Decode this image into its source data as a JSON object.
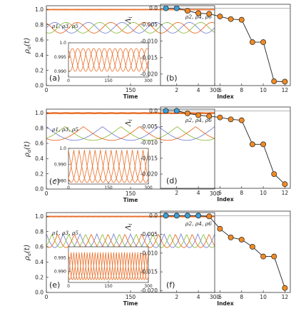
{
  "colors": {
    "orange": "#e8702a",
    "blue_series": "#7b86d6",
    "green_series": "#93bf45",
    "marker_blue": "#3aa0d8",
    "marker_orange": "#f08a24",
    "axis": "#333333"
  },
  "chart_data": [
    {
      "type": "line",
      "panel_label": "(a)",
      "xlabel": "Time",
      "ylabel": "ρ_a(t)",
      "xlim": [
        0,
        300
      ],
      "ylim": [
        0,
        1.05
      ],
      "xticks": [
        "0",
        "150",
        "300"
      ],
      "yticks": [
        "0.0",
        "0.2",
        "0.4",
        "0.6",
        "0.8",
        "1.0"
      ],
      "annotations": [
        "ρ2, ρ4, ρ6",
        "ρ1, ρ3, ρ5"
      ],
      "series": [
        {
          "name": "ρ2, ρ4, ρ6",
          "color": "#e8702a",
          "center": 0.999,
          "amplitude": 0.002,
          "period": 60,
          "phase_offsets": [
            0,
            20,
            40
          ]
        },
        {
          "name": "ρ1, ρ3, ρ5",
          "colors": [
            "#7b86d6",
            "#93bf45",
            "#e8702a"
          ],
          "center": 0.76,
          "amplitude": 0.07,
          "period": 60,
          "phase_offsets": [
            0,
            20,
            40
          ]
        }
      ],
      "inset": {
        "xlim": [
          0,
          300
        ],
        "ylim": [
          0.988,
          1.0
        ],
        "xticks": [
          "0",
          "150",
          "300"
        ],
        "yticks": [
          "0.990",
          "0.995",
          "1.0"
        ],
        "series": {
          "center": 0.994,
          "amplitude": 0.004,
          "period": 60,
          "phase_offsets": [
            0,
            20,
            40
          ],
          "shape": "sine"
        }
      }
    },
    {
      "type": "scatter",
      "panel_label": "(b)",
      "xlabel": "Index",
      "ylabel": "Λ_i",
      "xlim": [
        0.5,
        12.5
      ],
      "ylim": [
        -0.0235,
        0.0012
      ],
      "xticks": [
        "2",
        "4",
        "6",
        "8",
        "10",
        "12"
      ],
      "yticks": [
        "0.0",
        "-0.005",
        "-0.010",
        "-0.015",
        "-0.020"
      ],
      "x": [
        1,
        2,
        3,
        4,
        5,
        6,
        7,
        8,
        9,
        10,
        11,
        12
      ],
      "y": [
        0.0,
        0.0,
        -0.0008,
        -0.0015,
        -0.0017,
        -0.0025,
        -0.0033,
        -0.0035,
        -0.0103,
        -0.0103,
        -0.0222,
        -0.0223
      ],
      "marker_colors": [
        "blue",
        "blue",
        "orange",
        "orange",
        "orange",
        "orange",
        "orange",
        "orange",
        "orange",
        "orange",
        "orange",
        "orange"
      ]
    },
    {
      "type": "line",
      "panel_label": "(c)",
      "xlabel": "Time",
      "ylabel": "ρ_a(t)",
      "xlim": [
        0,
        300
      ],
      "ylim": [
        0,
        1.05
      ],
      "xticks": [
        "0",
        "150",
        "300"
      ],
      "yticks": [
        "0.0",
        "0.2",
        "0.4",
        "0.6",
        "0.8",
        "1.0"
      ],
      "annotations": [
        "ρ2, ρ4, ρ6",
        "ρ1, ρ3, ρ5"
      ],
      "series": [
        {
          "name": "ρ2, ρ4, ρ6",
          "color": "#e8702a",
          "center": 0.997,
          "amplitude": 0.006,
          "period": 60,
          "phase_offsets": [
            0,
            20,
            40
          ]
        },
        {
          "name": "ρ1, ρ3, ρ5",
          "colors": [
            "#7b86d6",
            "#93bf45",
            "#e8702a"
          ],
          "center": 0.73,
          "amplitude": 0.09,
          "period": 100,
          "phase_offsets": [
            0,
            33,
            66
          ]
        }
      ],
      "inset": {
        "xlim": [
          0,
          300
        ],
        "ylim": [
          0.978,
          1.0
        ],
        "xticks": [
          "0",
          "150",
          "300"
        ],
        "yticks": [
          "0.980",
          "0.990",
          "1.0"
        ],
        "series": {
          "center": 0.989,
          "amplitude": 0.01,
          "period": 60,
          "phase_offsets": [
            0,
            20,
            40
          ],
          "shape": "cusp"
        }
      }
    },
    {
      "type": "scatter",
      "panel_label": "(d)",
      "xlabel": "Index",
      "ylabel": "Λ_i",
      "xlim": [
        0.5,
        12.5
      ],
      "ylim": [
        -0.0245,
        0.0012
      ],
      "xticks": [
        "2",
        "4",
        "6",
        "8",
        "10",
        "12"
      ],
      "yticks": [
        "0.0",
        "-0.005",
        "-0.010",
        "-0.015",
        "-0.020"
      ],
      "x": [
        1,
        2,
        3,
        4,
        5,
        6,
        7,
        8,
        9,
        10,
        11,
        12
      ],
      "y": [
        0.0,
        0.0,
        -0.0008,
        -0.0014,
        -0.0017,
        -0.0021,
        -0.0027,
        -0.003,
        -0.0106,
        -0.0106,
        -0.02,
        -0.0232
      ],
      "marker_colors": [
        "blue",
        "blue",
        "orange",
        "orange",
        "orange",
        "orange",
        "orange",
        "orange",
        "orange",
        "orange",
        "orange",
        "orange"
      ]
    },
    {
      "type": "line",
      "panel_label": "(e)",
      "xlabel": "Time",
      "ylabel": "ρ_a(t)",
      "xlim": [
        0,
        300
      ],
      "ylim": [
        0,
        1.05
      ],
      "xticks": [
        "0",
        "150",
        "300"
      ],
      "yticks": [
        "0.0",
        "0.2",
        "0.4",
        "0.6",
        "0.8",
        "1.0"
      ],
      "annotations": [
        "ρ2, ρ4, ρ6",
        "ρ1, ρ3, ρ5"
      ],
      "series": [
        {
          "name": "ρ2, ρ4, ρ6",
          "color": "#e8702a",
          "center": 0.998,
          "amplitude": 0.003,
          "period": 30,
          "phase_offsets": [
            0,
            10,
            20
          ]
        },
        {
          "name": "ρ1, ρ3, ρ5",
          "colors": [
            "#7b86d6",
            "#93bf45",
            "#e8702a"
          ],
          "center": 0.68,
          "amplitude": 0.09,
          "period": 30,
          "phase_offsets": [
            0,
            10,
            20
          ]
        }
      ],
      "inset": {
        "xlim": [
          0,
          300
        ],
        "ylim": [
          0.986,
          0.999
        ],
        "xticks": [
          "0",
          "150",
          "300"
        ],
        "yticks": [
          "0.990",
          "0.995"
        ],
        "series": {
          "center": 0.992,
          "amplitude": 0.005,
          "period": 30,
          "phase_offsets": [
            0,
            10,
            20
          ],
          "shape": "cusp"
        }
      }
    },
    {
      "type": "scatter",
      "panel_label": "(f)",
      "xlabel": "Index",
      "ylabel": "Λ_i",
      "xlim": [
        0.5,
        12.5
      ],
      "ylim": [
        -0.0205,
        0.0012
      ],
      "xticks": [
        "2",
        "4",
        "6",
        "8",
        "10",
        "12"
      ],
      "yticks": [
        "0.0",
        "-0.005",
        "-0.010",
        "-0.015",
        "-0.020"
      ],
      "x": [
        1,
        2,
        3,
        4,
        5,
        6,
        7,
        8,
        9,
        10,
        11,
        12
      ],
      "y": [
        0.0,
        0.0,
        0.0,
        0.0,
        -0.0002,
        -0.0035,
        -0.0058,
        -0.0064,
        -0.0083,
        -0.0109,
        -0.0109,
        -0.0193
      ],
      "marker_colors": [
        "blue",
        "blue",
        "blue",
        "blue",
        "orange",
        "orange",
        "orange",
        "orange",
        "orange",
        "orange",
        "orange",
        "orange"
      ]
    }
  ]
}
